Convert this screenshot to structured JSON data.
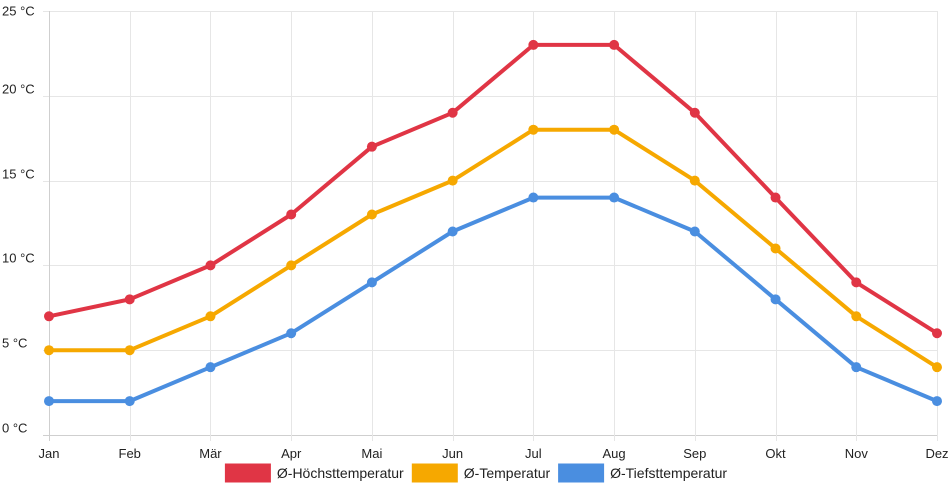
{
  "chart_data": {
    "type": "line",
    "title": "",
    "xlabel": "",
    "ylabel": "",
    "categories": [
      "Jan",
      "Feb",
      "Mär",
      "Apr",
      "Mai",
      "Jun",
      "Jul",
      "Aug",
      "Sep",
      "Okt",
      "Nov",
      "Dez"
    ],
    "ylim": [
      0,
      25
    ],
    "y_ticks": [
      {
        "value": 0,
        "label": "0 °C"
      },
      {
        "value": 5,
        "label": "5 °C"
      },
      {
        "value": 10,
        "label": "10 °C"
      },
      {
        "value": 15,
        "label": "15 °C"
      },
      {
        "value": 20,
        "label": "20 °C"
      },
      {
        "value": 25,
        "label": "25 °C"
      }
    ],
    "grid": true,
    "legend_position": "bottom-center",
    "series": [
      {
        "name": "Ø-Höchsttemperatur",
        "color": "#e03545",
        "values": [
          7,
          8,
          10,
          13,
          17,
          19,
          23,
          23,
          19,
          14,
          9,
          6
        ]
      },
      {
        "name": "Ø-Temperatur",
        "color": "#f6a800",
        "values": [
          5,
          5,
          7,
          10,
          13,
          15,
          18,
          18,
          15,
          11,
          7,
          4
        ]
      },
      {
        "name": "Ø-Tiefsttemperatur",
        "color": "#4a8ee0",
        "values": [
          2,
          2,
          4,
          6,
          9,
          12,
          14,
          14,
          12,
          8,
          4,
          2
        ]
      }
    ]
  }
}
